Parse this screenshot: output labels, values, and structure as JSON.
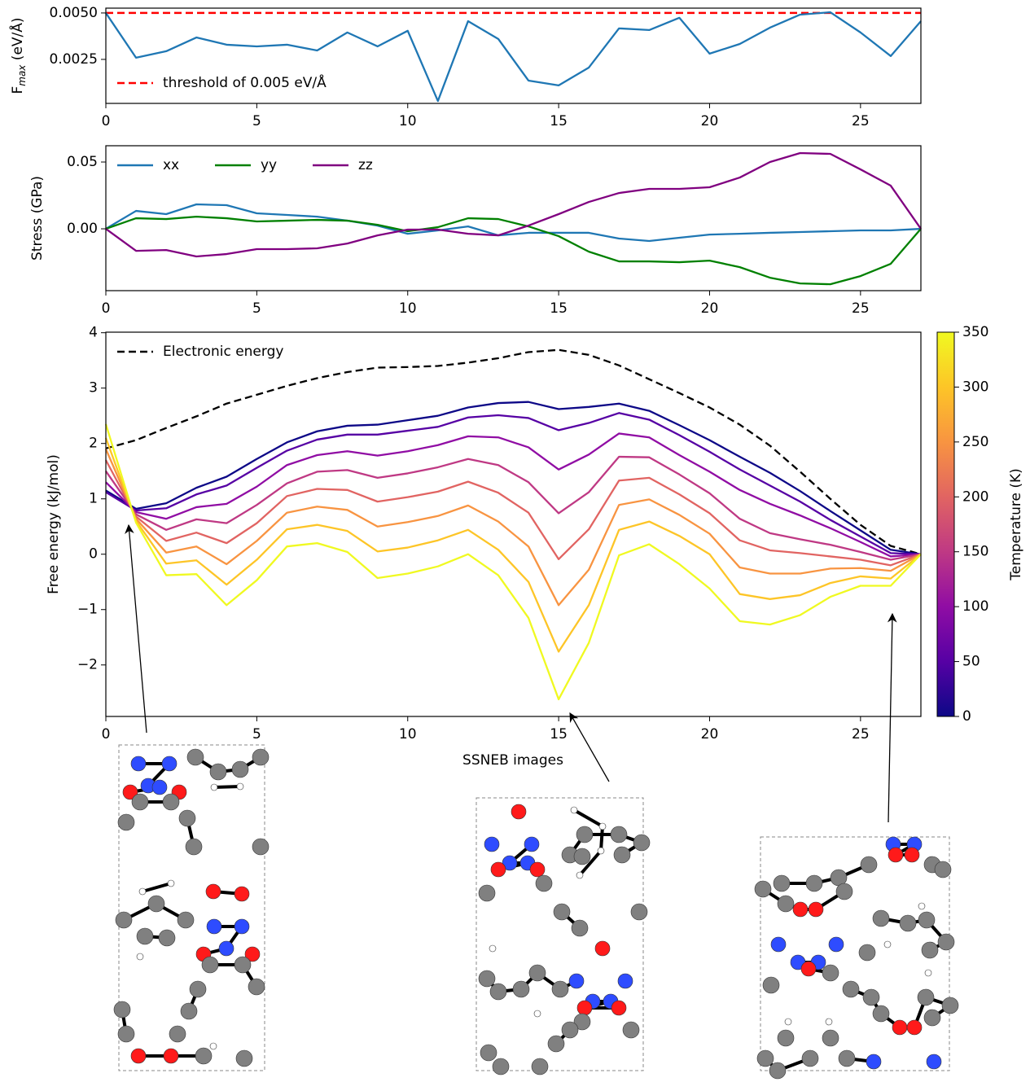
{
  "chart_data": [
    {
      "type": "line",
      "ylabel": "F",
      "ylabel_sub": "max",
      "ylabel_unit": " (eV/Å)",
      "x": [
        0,
        1,
        2,
        3,
        4,
        5,
        6,
        7,
        8,
        9,
        10,
        11,
        12,
        13,
        14,
        15,
        16,
        17,
        18,
        19,
        20,
        21,
        22,
        23,
        24,
        25,
        26,
        27
      ],
      "xlim": [
        0,
        27
      ],
      "xticks": [
        0,
        5,
        10,
        15,
        20,
        25
      ],
      "ylim": [
        0.00013,
        0.00526
      ],
      "yticks": [
        0.0025,
        {
          "value": 0.005,
          "label": "0.0050"
        }
      ],
      "legend": "lower left",
      "series": [
        {
          "color": "#1f77b4",
          "values": [
            0.005,
            0.00259,
            0.00294,
            0.00368,
            0.00329,
            0.0032,
            0.00329,
            0.00298,
            0.00395,
            0.0032,
            0.00404,
            0.00026,
            0.00456,
            0.0036,
            0.00136,
            0.0011,
            0.00206,
            0.00417,
            0.00408,
            0.00474,
            0.00281,
            0.00333,
            0.00421,
            0.00491,
            0.00504,
            0.00395,
            0.00268,
            0.00456
          ]
        }
      ],
      "hlines": [
        {
          "value": 0.005,
          "color": "#ff0000",
          "linestyle": "dashed",
          "label": "threshold of 0.005 eV/Å"
        }
      ]
    },
    {
      "type": "line",
      "ylabel": "Stress (GPa)",
      "x": [
        0,
        1,
        2,
        3,
        4,
        5,
        6,
        7,
        8,
        9,
        10,
        11,
        12,
        13,
        14,
        15,
        16,
        17,
        18,
        19,
        20,
        21,
        22,
        23,
        24,
        25,
        26,
        27
      ],
      "xlim": [
        0,
        27
      ],
      "xticks": [
        0,
        5,
        10,
        15,
        20,
        25
      ],
      "ylim": [
        -0.0463,
        0.0622
      ],
      "yticks": [
        {
          "value": 0,
          "label": "0.00"
        },
        0.05
      ],
      "legend": "upper left",
      "series": [
        {
          "name": "xx",
          "color": "#1f77b4",
          "values": [
            0,
            0.0134,
            0.011,
            0.0183,
            0.0177,
            0.0116,
            0.0104,
            0.0091,
            0.0061,
            0.0024,
            -0.0037,
            -0.0012,
            0.0018,
            -0.0049,
            -0.003,
            -0.003,
            -0.003,
            -0.0073,
            -0.0091,
            -0.0067,
            -0.0043,
            -0.0037,
            -0.003,
            -0.0024,
            -0.0018,
            -0.0012,
            -0.0012,
            0
          ]
        },
        {
          "name": "yy",
          "color": "#008000",
          "values": [
            0,
            0.0079,
            0.0073,
            0.0091,
            0.0079,
            0.0055,
            0.0061,
            0.0067,
            0.0061,
            0.003,
            -0.0018,
            0.0012,
            0.0079,
            0.0073,
            0.0018,
            -0.0055,
            -0.0171,
            -0.0244,
            -0.0244,
            -0.025,
            -0.0238,
            -0.0287,
            -0.0366,
            -0.0409,
            -0.0415,
            -0.0354,
            -0.0262,
            0
          ]
        },
        {
          "name": "zz",
          "color": "#800080",
          "values": [
            0,
            -0.0165,
            -0.0159,
            -0.0207,
            -0.0189,
            -0.0152,
            -0.0152,
            -0.0146,
            -0.011,
            -0.0049,
            -0.0006,
            -0.0006,
            -0.0037,
            -0.0049,
            0.0024,
            0.011,
            0.0201,
            0.0268,
            0.0299,
            0.0299,
            0.0311,
            0.0384,
            0.05,
            0.0567,
            0.0561,
            0.0445,
            0.0323,
            0
          ]
        }
      ]
    },
    {
      "type": "line",
      "ylabel": "Free energy (kJ/mol)",
      "xlabel": "SSNEB images",
      "x": [
        0,
        1,
        2,
        3,
        4,
        5,
        6,
        7,
        8,
        9,
        10,
        11,
        12,
        13,
        14,
        15,
        16,
        17,
        18,
        19,
        20,
        21,
        22,
        23,
        24,
        25,
        26,
        27
      ],
      "xlim": [
        0,
        27
      ],
      "xticks": [
        0,
        5,
        10,
        15,
        20,
        25
      ],
      "ylim": [
        -2.93,
        4.01
      ],
      "yticks": [
        {
          "value": -2,
          "label": "−2"
        },
        {
          "value": -1,
          "label": "−1"
        },
        0,
        1,
        2,
        3,
        4
      ],
      "legend": "upper left",
      "colorbar": {
        "label": "Temperature (K)",
        "lim": [
          0,
          350
        ],
        "ticks": [
          0,
          50,
          100,
          150,
          200,
          250,
          300,
          350
        ],
        "colormap": "plasma"
      },
      "series": [
        {
          "name": "Electronic energy",
          "color": "#000000",
          "linestyle": "dashed",
          "values": [
            1.91,
            2.06,
            2.28,
            2.49,
            2.72,
            2.88,
            3.04,
            3.18,
            3.29,
            3.37,
            3.38,
            3.4,
            3.46,
            3.54,
            3.65,
            3.69,
            3.6,
            3.41,
            3.16,
            2.91,
            2.65,
            2.34,
            1.96,
            1.49,
            1.0,
            0.53,
            0.15,
            0
          ]
        },
        {
          "color": "#0d0887",
          "values": [
            1.15,
            0.82,
            0.92,
            1.2,
            1.4,
            1.72,
            2.02,
            2.22,
            2.32,
            2.34,
            2.42,
            2.5,
            2.65,
            2.73,
            2.75,
            2.62,
            2.66,
            2.72,
            2.59,
            2.33,
            2.06,
            1.76,
            1.47,
            1.14,
            0.78,
            0.43,
            0.08,
            0
          ]
        },
        {
          "color": "#5601a4",
          "values": [
            1.12,
            0.79,
            0.83,
            1.08,
            1.24,
            1.56,
            1.87,
            2.07,
            2.16,
            2.16,
            2.23,
            2.3,
            2.47,
            2.51,
            2.46,
            2.24,
            2.37,
            2.55,
            2.43,
            2.15,
            1.85,
            1.53,
            1.24,
            0.95,
            0.62,
            0.32,
            0.02,
            0
          ]
        },
        {
          "color": "#900da4",
          "values": [
            1.3,
            0.76,
            0.64,
            0.85,
            0.91,
            1.22,
            1.61,
            1.79,
            1.86,
            1.78,
            1.86,
            1.97,
            2.13,
            2.11,
            1.93,
            1.53,
            1.8,
            2.18,
            2.11,
            1.79,
            1.49,
            1.16,
            0.91,
            0.7,
            0.47,
            0.22,
            -0.04,
            0
          ]
        },
        {
          "color": "#bf3984",
          "values": [
            1.5,
            0.72,
            0.44,
            0.63,
            0.56,
            0.89,
            1.28,
            1.49,
            1.52,
            1.38,
            1.46,
            1.57,
            1.72,
            1.61,
            1.3,
            0.74,
            1.12,
            1.76,
            1.75,
            1.44,
            1.1,
            0.64,
            0.38,
            0.27,
            0.17,
            0.04,
            -0.1,
            0
          ]
        },
        {
          "color": "#e16462",
          "values": [
            1.7,
            0.68,
            0.24,
            0.39,
            0.2,
            0.56,
            1.05,
            1.18,
            1.16,
            0.95,
            1.03,
            1.13,
            1.31,
            1.11,
            0.75,
            -0.09,
            0.45,
            1.33,
            1.38,
            1.08,
            0.74,
            0.25,
            0.07,
            0.02,
            -0.04,
            -0.1,
            -0.2,
            0
          ]
        },
        {
          "color": "#f89441",
          "values": [
            1.9,
            0.64,
            0.03,
            0.14,
            -0.18,
            0.24,
            0.75,
            0.86,
            0.8,
            0.5,
            0.58,
            0.69,
            0.88,
            0.59,
            0.14,
            -0.92,
            -0.28,
            0.89,
            0.99,
            0.71,
            0.37,
            -0.24,
            -0.35,
            -0.35,
            -0.26,
            -0.25,
            -0.3,
            0
          ]
        },
        {
          "color": "#fdc527",
          "values": [
            2.1,
            0.6,
            -0.17,
            -0.11,
            -0.55,
            -0.1,
            0.45,
            0.53,
            0.42,
            0.05,
            0.12,
            0.25,
            0.44,
            0.08,
            -0.5,
            -1.76,
            -0.92,
            0.44,
            0.59,
            0.33,
            0.0,
            -0.72,
            -0.81,
            -0.74,
            -0.52,
            -0.4,
            -0.44,
            0
          ]
        },
        {
          "color": "#f0f921",
          "values": [
            2.35,
            0.57,
            -0.38,
            -0.36,
            -0.92,
            -0.47,
            0.14,
            0.2,
            0.04,
            -0.43,
            -0.35,
            -0.22,
            0.0,
            -0.38,
            -1.15,
            -2.62,
            -1.6,
            -0.02,
            0.18,
            -0.18,
            -0.62,
            -1.21,
            -1.27,
            -1.1,
            -0.77,
            -0.57,
            -0.57,
            0
          ]
        }
      ]
    }
  ]
}
